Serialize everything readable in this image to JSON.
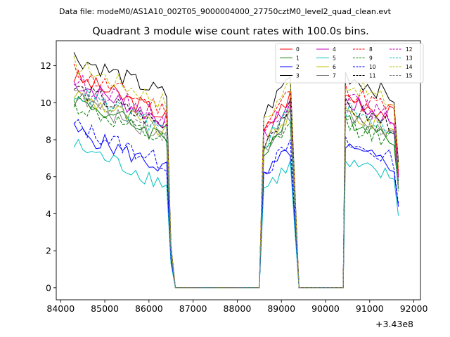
{
  "figure": {
    "suptitle": "Data file: modeM0/AS1A10_002T05_9000004000_27750cztM0_level2_quad_clean.evt"
  },
  "chart_data": {
    "type": "line",
    "title": "Quadrant 3 module wise count rates with 100.0s bins.",
    "xlabel": "",
    "ylabel": "",
    "x_offset_label": "+3.43e8",
    "xlim": [
      83900,
      92150
    ],
    "ylim": [
      -0.65,
      13.35
    ],
    "x_ticks": [
      84000,
      85000,
      86000,
      87000,
      88000,
      89000,
      90000,
      91000,
      92000
    ],
    "y_ticks": [
      0,
      2,
      4,
      6,
      8,
      10,
      12
    ],
    "legend_position": "top-right",
    "bin_seconds": 100,
    "gti_segments": [
      [
        84300,
        86400
      ],
      [
        88600,
        89200
      ],
      [
        90450,
        91650
      ]
    ],
    "zero_segments": [
      [
        86600,
        88500
      ],
      [
        89400,
        90400
      ]
    ],
    "series": [
      {
        "name": "0",
        "color": "#ff0000",
        "dash": "solid",
        "level": 10.2
      },
      {
        "name": "1",
        "color": "#008000",
        "dash": "solid",
        "level": 9.0
      },
      {
        "name": "2",
        "color": "#0000ff",
        "dash": "solid",
        "level": 7.3
      },
      {
        "name": "3",
        "color": "#000000",
        "dash": "solid",
        "level": 11.3
      },
      {
        "name": "4",
        "color": "#bf00bf",
        "dash": "solid",
        "level": 9.9
      },
      {
        "name": "5",
        "color": "#00bfbf",
        "dash": "solid",
        "level": 6.5
      },
      {
        "name": "6",
        "color": "#bfbf00",
        "dash": "solid",
        "level": 9.3
      },
      {
        "name": "7",
        "color": "#808080",
        "dash": "solid",
        "level": 9.1
      },
      {
        "name": "8",
        "color": "#ff0000",
        "dash": "dashed",
        "level": 10.5
      },
      {
        "name": "9",
        "color": "#008000",
        "dash": "dashed",
        "level": 8.7
      },
      {
        "name": "10",
        "color": "#0000ff",
        "dash": "dashed",
        "level": 7.6
      },
      {
        "name": "11",
        "color": "#000000",
        "dash": "dashed",
        "level": 9.6
      },
      {
        "name": "12",
        "color": "#bf00bf",
        "dash": "dashed",
        "level": 10.0
      },
      {
        "name": "13",
        "color": "#00bfbf",
        "dash": "dashed",
        "level": 9.4
      },
      {
        "name": "14",
        "color": "#bfbf00",
        "dash": "dashed",
        "level": 10.9
      },
      {
        "name": "15",
        "color": "#808080",
        "dash": "dashed",
        "level": 9.2
      }
    ]
  }
}
